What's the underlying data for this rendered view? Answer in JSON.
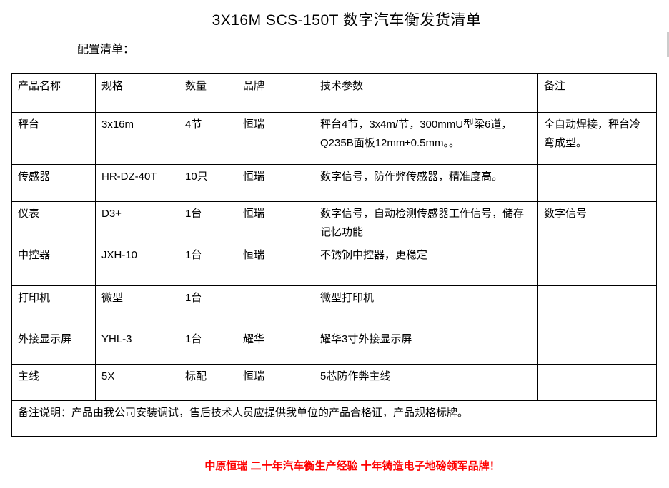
{
  "title": "3X16M SCS-150T 数字汽车衡发货清单",
  "subtitle": "配置清单：",
  "table": {
    "headers": [
      "产品名称",
      "规格",
      "数量",
      "品牌",
      "技术参数",
      "备注"
    ],
    "rows": [
      [
        "秤台",
        "3x16m",
        "4节",
        "恒瑞",
        "秤台4节，3x4m/节，300mmU型梁6道，Q235B面板12mm±0.5mm。。",
        "全自动焊接，秤台冷弯成型。"
      ],
      [
        "传感器",
        "HR-DZ-40T",
        "10只",
        "恒瑞",
        "数字信号，防作弊传感器，精准度高。",
        ""
      ],
      [
        "仪表",
        "D3+",
        "1台",
        "恒瑞",
        "数字信号，自动检测传感器工作信号，储存记忆功能",
        "数字信号"
      ],
      [
        "中控器",
        "JXH-10",
        "1台",
        "恒瑞",
        "不锈钢中控器，更稳定",
        ""
      ],
      [
        "打印机",
        "微型",
        "1台",
        "",
        "微型打印机",
        ""
      ],
      [
        "外接显示屏",
        "YHL-3",
        "1台",
        "耀华",
        "耀华3寸外接显示屏",
        ""
      ],
      [
        "主线",
        "5X",
        "标配",
        "恒瑞",
        "5芯防作弊主线",
        ""
      ]
    ],
    "note": "备注说明：产品由我公司安装调试，售后技术人员应提供我单位的产品合格证，产品规格标牌。"
  },
  "footer": "中原恒瑞 二十年汽车衡生产经验 十年铸造电子地磅领军品牌！"
}
